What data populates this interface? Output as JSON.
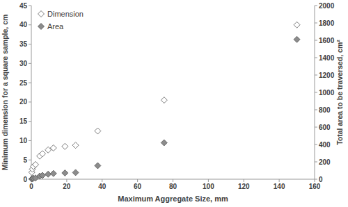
{
  "chart_data": {
    "type": "scatter",
    "xlabel": "Maximum Aggregate Size, mm",
    "ylabel": "Minimum dimension for a square sample, cm",
    "y2label": "Total area to be traversed, cm²",
    "x": [
      0.3,
      0.6,
      1.18,
      2.36,
      4.75,
      6.3,
      9.5,
      12.5,
      19,
      25,
      37.5,
      75,
      150
    ],
    "series": [
      {
        "name": "Dimension",
        "color": "#ffffff",
        "marker": "diamond",
        "values": [
          1.8,
          2.6,
          3.3,
          3.8,
          6.0,
          6.6,
          7.6,
          8.1,
          8.5,
          8.8,
          12.5,
          20.5,
          40
        ]
      },
      {
        "name": "Area",
        "color": "#8c8c8c",
        "marker": "diamond",
        "axis": "y2",
        "values": [
          3,
          7,
          11,
          14,
          36,
          44,
          58,
          66,
          72,
          77,
          156,
          420,
          1610
        ]
      }
    ],
    "xlim": [
      0,
      160
    ],
    "xticks": [
      0,
      20,
      40,
      60,
      80,
      100,
      120,
      140,
      160
    ],
    "ylim": [
      0,
      45
    ],
    "yticks": [
      0,
      5,
      10,
      15,
      20,
      25,
      30,
      35,
      40,
      45
    ],
    "y2lim": [
      0,
      2000
    ],
    "y2ticks": [
      0,
      200,
      400,
      600,
      800,
      1000,
      1200,
      1400,
      1600,
      1800,
      2000
    ],
    "grid": false,
    "legend": "upper left"
  }
}
